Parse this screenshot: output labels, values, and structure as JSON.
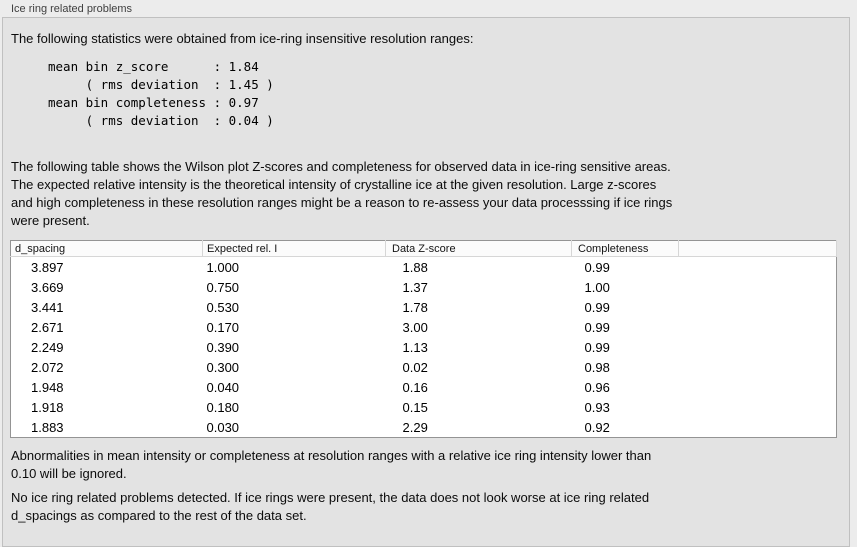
{
  "panel": {
    "title": "Ice ring related problems"
  },
  "intro": "The following statistics were obtained from ice-ring insensitive resolution ranges:",
  "stats_block": "mean bin z_score      : 1.84\n     ( rms deviation  : 1.45 )\nmean bin completeness : 0.97\n     ( rms deviation  : 0.04 )",
  "description": "The following table shows the Wilson plot Z-scores and completeness for observed data in ice-ring sensitive areas.\nThe expected relative intensity is the theoretical intensity of crystalline ice at the given resolution. Large z-scores\nand high completeness in these resolution ranges might be a reason to re-assess your data processsing if ice rings\nwere present.",
  "table": {
    "columns": [
      "d_spacing",
      "Expected rel. I",
      "Data Z-score",
      "Completeness"
    ],
    "rows": [
      [
        "3.897",
        "1.000",
        "1.88",
        "0.99"
      ],
      [
        "3.669",
        "0.750",
        "1.37",
        "1.00"
      ],
      [
        "3.441",
        "0.530",
        "1.78",
        "0.99"
      ],
      [
        "2.671",
        "0.170",
        "3.00",
        "0.99"
      ],
      [
        "2.249",
        "0.390",
        "1.13",
        "0.99"
      ],
      [
        "2.072",
        "0.300",
        "0.02",
        "0.98"
      ],
      [
        "1.948",
        "0.040",
        "0.16",
        "0.96"
      ],
      [
        "1.918",
        "0.180",
        "0.15",
        "0.93"
      ],
      [
        "1.883",
        "0.030",
        "2.29",
        "0.92"
      ]
    ]
  },
  "note_ignore": "Abnormalities in mean intensity or completeness at resolution ranges with a relative ice ring intensity lower than\n0.10 will be ignored.",
  "conclusion": "No ice ring related problems detected. If ice rings were present, the data does not look worse at ice ring related\nd_spacings as compared to the rest of the data set.",
  "colors": {
    "window_bg": "#ececec",
    "panel_bg": "#e3e3e3",
    "table_bg": "#ffffff",
    "table_border": "#949494"
  }
}
